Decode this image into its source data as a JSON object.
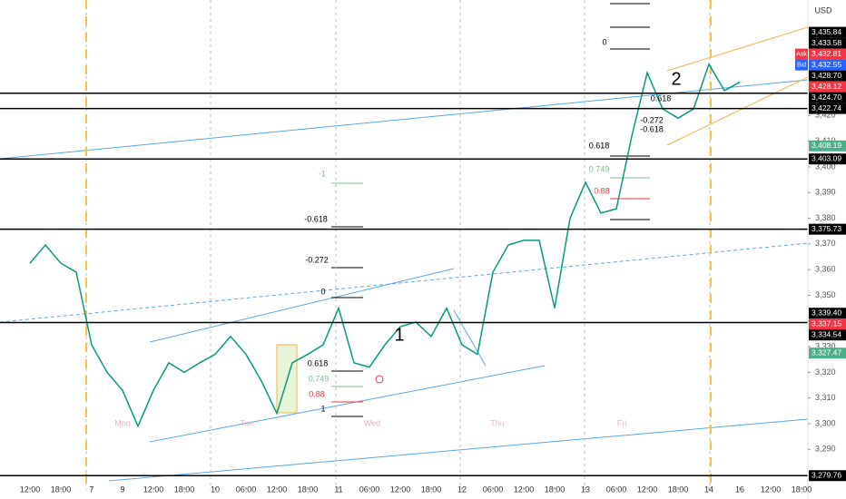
{
  "chart_data": {
    "type": "line",
    "currency": "USD",
    "color": "#089981",
    "values": [
      3362.5,
      3369.6,
      3362.5,
      3359,
      3330.7,
      3320,
      3313,
      3299,
      3313,
      3323.7,
      3320,
      3323.7,
      3327,
      3334,
      3327,
      3316.6,
      3304,
      3323.7,
      3327,
      3330.7,
      3345,
      3323.7,
      3322,
      3330.7,
      3337.8,
      3339.6,
      3334,
      3345,
      3330.7,
      3327,
      3359,
      3369.6,
      3371.4,
      3371.4,
      3345,
      3380,
      3394,
      3382,
      3383.7,
      3412,
      3436.7,
      3422.6,
      3419,
      3422.6,
      3440,
      3429.7,
      3433
    ],
    "xlim": [
      -1.94,
      50.41
    ],
    "ylim": [
      3274.2,
      3465
    ],
    "xticks": [
      {
        "value": 0,
        "label": "12:00"
      },
      {
        "value": 2,
        "label": "18:00"
      },
      {
        "value": 4,
        "label": "7"
      },
      {
        "value": 6,
        "label": "9"
      },
      {
        "value": 8,
        "label": "12:00"
      },
      {
        "value": 10,
        "label": "18:00"
      },
      {
        "value": 12,
        "label": "10"
      },
      {
        "value": 14,
        "label": "06:00"
      },
      {
        "value": 16,
        "label": "12:00"
      },
      {
        "value": 18,
        "label": "18:00"
      },
      {
        "value": 20,
        "label": "11"
      },
      {
        "value": 22,
        "label": "06:00"
      },
      {
        "value": 24,
        "label": "12:00"
      },
      {
        "value": 26,
        "label": "18:00"
      },
      {
        "value": 28,
        "label": "12"
      },
      {
        "value": 30,
        "label": "06:00"
      },
      {
        "value": 32,
        "label": "12:00"
      },
      {
        "value": 34,
        "label": "18:00"
      },
      {
        "value": 36,
        "label": "13"
      },
      {
        "value": 38,
        "label": "06:00"
      },
      {
        "value": 40,
        "label": "12:00"
      },
      {
        "value": 42,
        "label": "18:00"
      },
      {
        "value": 44,
        "label": "14"
      },
      {
        "value": 46,
        "label": "16"
      },
      {
        "value": 48,
        "label": "12:00"
      },
      {
        "value": 50,
        "label": "18:00"
      }
    ],
    "yticks": [
      {
        "value": 3290,
        "label": "3,290"
      },
      {
        "value": 3300,
        "label": "3,300"
      },
      {
        "value": 3310,
        "label": "3,310"
      },
      {
        "value": 3320,
        "label": "3,320"
      },
      {
        "value": 3330,
        "label": "3,330"
      },
      {
        "value": 3340,
        "label": "3,340"
      },
      {
        "value": 3350,
        "label": "3,350"
      },
      {
        "value": 3360,
        "label": "3,360"
      },
      {
        "value": 3370,
        "label": "3,370"
      },
      {
        "value": 3380,
        "label": "3,380"
      },
      {
        "value": 3390,
        "label": "3,390"
      },
      {
        "value": 3400,
        "label": "3,400"
      },
      {
        "value": 3410,
        "label": "3,410"
      },
      {
        "value": 3420,
        "label": "3,420"
      },
      {
        "value": 3430,
        "label": "3,430"
      }
    ],
    "price_labels": [
      {
        "value": 3435.84,
        "label": "3,435.84",
        "color": "#000000",
        "line": false
      },
      {
        "value": 3433.58,
        "label": "3,433.58",
        "color": "#000000",
        "line": false
      },
      {
        "value": 3432.81,
        "label": "3,432.81",
        "color": "#f23645",
        "tag": "Ask",
        "line": false
      },
      {
        "value": 3432.55,
        "label": "3,432.55",
        "color": "#2962ff",
        "tag": "Bid",
        "line": false
      },
      {
        "value": 3428.7,
        "label": "3,428.70",
        "color": "#000000",
        "line": true
      },
      {
        "value": 3428.12,
        "label": "3,428.12",
        "color": "#f23645",
        "line": false
      },
      {
        "value": 3424.7,
        "label": "3,424.70",
        "color": "#000000",
        "line": false
      },
      {
        "value": 3422.74,
        "label": "3,422.74",
        "color": "#000000",
        "line": true
      },
      {
        "value": 3408.19,
        "label": "3,408.19",
        "color": "#4caf8a",
        "line": false
      },
      {
        "value": 3403.09,
        "label": "3,403.09",
        "color": "#000000",
        "line": true
      },
      {
        "value": 3375.73,
        "label": "3,375.73",
        "color": "#000000",
        "line": true
      },
      {
        "value": 3339.4,
        "label": "3,339.40",
        "color": "#000000",
        "line": true
      },
      {
        "value": 3337.15,
        "label": "3,337.15",
        "color": "#f23645",
        "line": false
      },
      {
        "value": 3334.54,
        "label": "3,334.54",
        "color": "#000000",
        "line": false
      },
      {
        "value": 3327.47,
        "label": "3,327.47",
        "color": "#4caf8a",
        "line": false
      },
      {
        "value": 3279.76,
        "label": "3,279.76",
        "color": "#000000",
        "line": true
      }
    ],
    "day_labels": [
      "Mon",
      "Tue",
      "Wed",
      "Thu",
      "Fri"
    ],
    "annotations": [
      {
        "text": "0",
        "color": "#000000"
      },
      {
        "text": "2",
        "color": "#000000"
      },
      {
        "text": "0.618",
        "color": "#000000"
      },
      {
        "text": "-0.272",
        "color": "#000000"
      },
      {
        "text": "-0.618",
        "color": "#000000"
      },
      {
        "text": "0.618",
        "color": "#000000"
      },
      {
        "text": "0.749",
        "color": "#7cc08a"
      },
      {
        "text": "0.88",
        "color": "#f23645"
      },
      {
        "text": "-1",
        "color": "#7cc08a"
      },
      {
        "text": "-0.618",
        "color": "#000000"
      },
      {
        "text": "-0.272",
        "color": "#000000"
      },
      {
        "text": "0",
        "color": "#000000"
      },
      {
        "text": "1",
        "color": "#000000"
      },
      {
        "text": "0.618",
        "color": "#000000"
      },
      {
        "text": "0.749",
        "color": "#7cc08a"
      },
      {
        "text": "0.88",
        "color": "#f23645"
      },
      {
        "text": "1",
        "color": "#000000"
      }
    ]
  }
}
